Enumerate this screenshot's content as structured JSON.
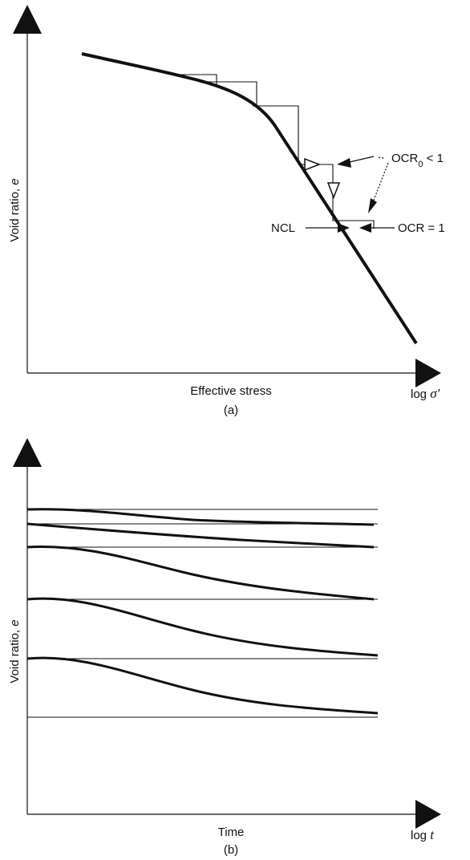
{
  "panel_a": {
    "y_axis_label": "Void ratio, ",
    "y_axis_symbol": "e",
    "x_axis_label": "Effective stress",
    "x_axis_log_label": "log ",
    "x_axis_log_symbol": "σ′",
    "caption": "(a)",
    "label_ncl": "NCL",
    "label_ocr0_text": "OCR",
    "label_ocr0_sub": "0",
    "label_ocr0_rel": " < 1",
    "label_ocr1": "OCR = 1"
  },
  "panel_b": {
    "y_axis_label": "Void ratio, ",
    "y_axis_symbol": "e",
    "x_axis_label": "Time",
    "x_axis_log_label": "log ",
    "x_axis_log_symbol": "t",
    "caption": "(b)"
  },
  "colors": {
    "line": "#111111",
    "background": "#ffffff"
  }
}
